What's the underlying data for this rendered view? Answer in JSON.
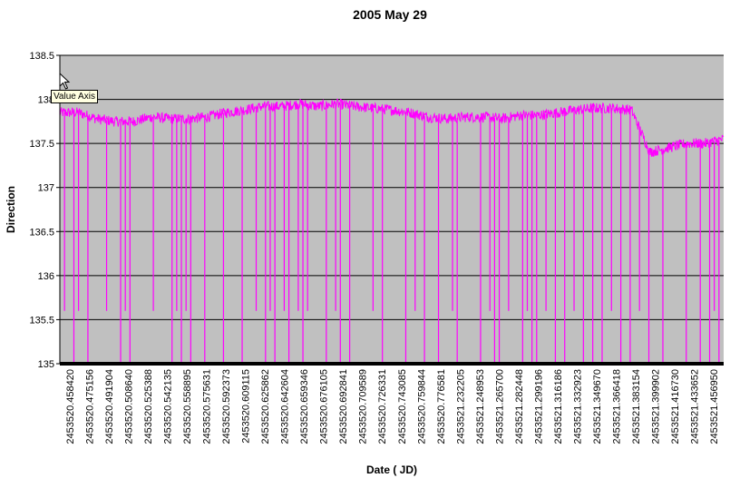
{
  "chart_data": {
    "type": "line",
    "title": "2005 May 29",
    "xlabel": "Date ( JD)",
    "ylabel": "Direction",
    "ylim": [
      135,
      138.5
    ],
    "y_ticks": [
      "135",
      "135.5",
      "136",
      "136.5",
      "137",
      "137.5",
      "138",
      "138.5"
    ],
    "x_ticks": [
      "2453520.458420",
      "2453520.475156",
      "2453520.491904",
      "2453520.508640",
      "2453520.525388",
      "2453520.542135",
      "2453520.558895",
      "2453520.575631",
      "2453520.592373",
      "2453520.609115",
      "2453520.625862",
      "2453520.642604",
      "2453520.659346",
      "2453520.676105",
      "2453520.692841",
      "2453520.709589",
      "2453520.726331",
      "2453520.743085",
      "2453520.759844",
      "2453520.776581",
      "2453521.232205",
      "2453521.248953",
      "2453521.265700",
      "2453521.282448",
      "2453521.299196",
      "2453521.316186",
      "2453521.332923",
      "2453521.349670",
      "2453521.366418",
      "2453521.383154",
      "2453521.399902",
      "2453521.416730",
      "2453521.433652",
      "2453521.456950"
    ],
    "grid": true,
    "background_color": "#c0c0c0",
    "series": [
      {
        "color": "#ff00ff",
        "baseline_profile": [
          [
            0,
            137.85
          ],
          [
            2,
            137.85
          ],
          [
            4,
            137.78
          ],
          [
            6,
            137.75
          ],
          [
            8,
            137.75
          ],
          [
            10,
            137.8
          ],
          [
            12,
            137.78
          ],
          [
            14,
            137.78
          ],
          [
            16,
            137.8
          ],
          [
            18,
            137.85
          ],
          [
            20,
            137.88
          ],
          [
            22,
            137.92
          ],
          [
            24,
            137.92
          ],
          [
            26,
            137.95
          ],
          [
            28,
            137.92
          ],
          [
            30,
            137.95
          ],
          [
            32,
            137.92
          ],
          [
            34,
            137.9
          ],
          [
            36,
            137.88
          ],
          [
            38,
            137.85
          ],
          [
            40,
            137.8
          ],
          [
            42,
            137.78
          ],
          [
            44,
            137.8
          ],
          [
            46,
            137.8
          ],
          [
            48,
            137.78
          ],
          [
            50,
            137.82
          ],
          [
            52,
            137.82
          ],
          [
            54,
            137.85
          ],
          [
            56,
            137.88
          ],
          [
            58,
            137.9
          ],
          [
            60,
            137.9
          ],
          [
            62,
            137.88
          ],
          [
            64,
            137.4
          ],
          [
            66,
            137.45
          ],
          [
            68,
            137.5
          ],
          [
            70,
            137.5
          ],
          [
            72,
            137.55
          ]
        ],
        "dropouts": [
          [
            1,
            135.6
          ],
          [
            3,
            135.0
          ],
          [
            4,
            135.6
          ],
          [
            6,
            135.0
          ],
          [
            10,
            135.6
          ],
          [
            13,
            135.0
          ],
          [
            14,
            135.6
          ],
          [
            15,
            135.0
          ],
          [
            20,
            135.6
          ],
          [
            24,
            135.0
          ],
          [
            25,
            135.6
          ],
          [
            26,
            135.0
          ],
          [
            27,
            135.6
          ],
          [
            28,
            135.0
          ],
          [
            31,
            135.0
          ],
          [
            35,
            135.0
          ],
          [
            39,
            135.0
          ],
          [
            42,
            135.6
          ],
          [
            44,
            135.0
          ],
          [
            45,
            135.6
          ],
          [
            46,
            135.0
          ],
          [
            48,
            135.6
          ],
          [
            49,
            135.0
          ],
          [
            51,
            135.6
          ],
          [
            52,
            135.0
          ],
          [
            53,
            135.6
          ],
          [
            57,
            135.0
          ],
          [
            59,
            135.6
          ],
          [
            60,
            135.0
          ],
          [
            62,
            135.0
          ],
          [
            67,
            135.6
          ],
          [
            69,
            135.0
          ],
          [
            74,
            135.0
          ],
          [
            76,
            135.6
          ],
          [
            78,
            135.0
          ],
          [
            81,
            135.0
          ],
          [
            84,
            135.6
          ],
          [
            85,
            135.0
          ],
          [
            90,
            135.0
          ],
          [
            92,
            135.6
          ],
          [
            93,
            135.0
          ],
          [
            94,
            135.0
          ],
          [
            96,
            135.6
          ],
          [
            99,
            135.0
          ],
          [
            100,
            135.6
          ],
          [
            101,
            135.0
          ],
          [
            102,
            135.0
          ],
          [
            104,
            135.6
          ],
          [
            106,
            135.0
          ],
          [
            108,
            135.0
          ],
          [
            110,
            135.6
          ],
          [
            112,
            135.0
          ],
          [
            114,
            135.0
          ],
          [
            116,
            135.0
          ],
          [
            118,
            135.6
          ],
          [
            120,
            135.0
          ],
          [
            122,
            135.0
          ],
          [
            124,
            135.6
          ],
          [
            126,
            135.0
          ],
          [
            129,
            135.0
          ],
          [
            134,
            135.0
          ],
          [
            137,
            135.0
          ],
          [
            139,
            135.0
          ],
          [
            140,
            135.6
          ],
          [
            141,
            135.0
          ]
        ]
      }
    ]
  },
  "tooltip": {
    "text": "Value Axis"
  }
}
